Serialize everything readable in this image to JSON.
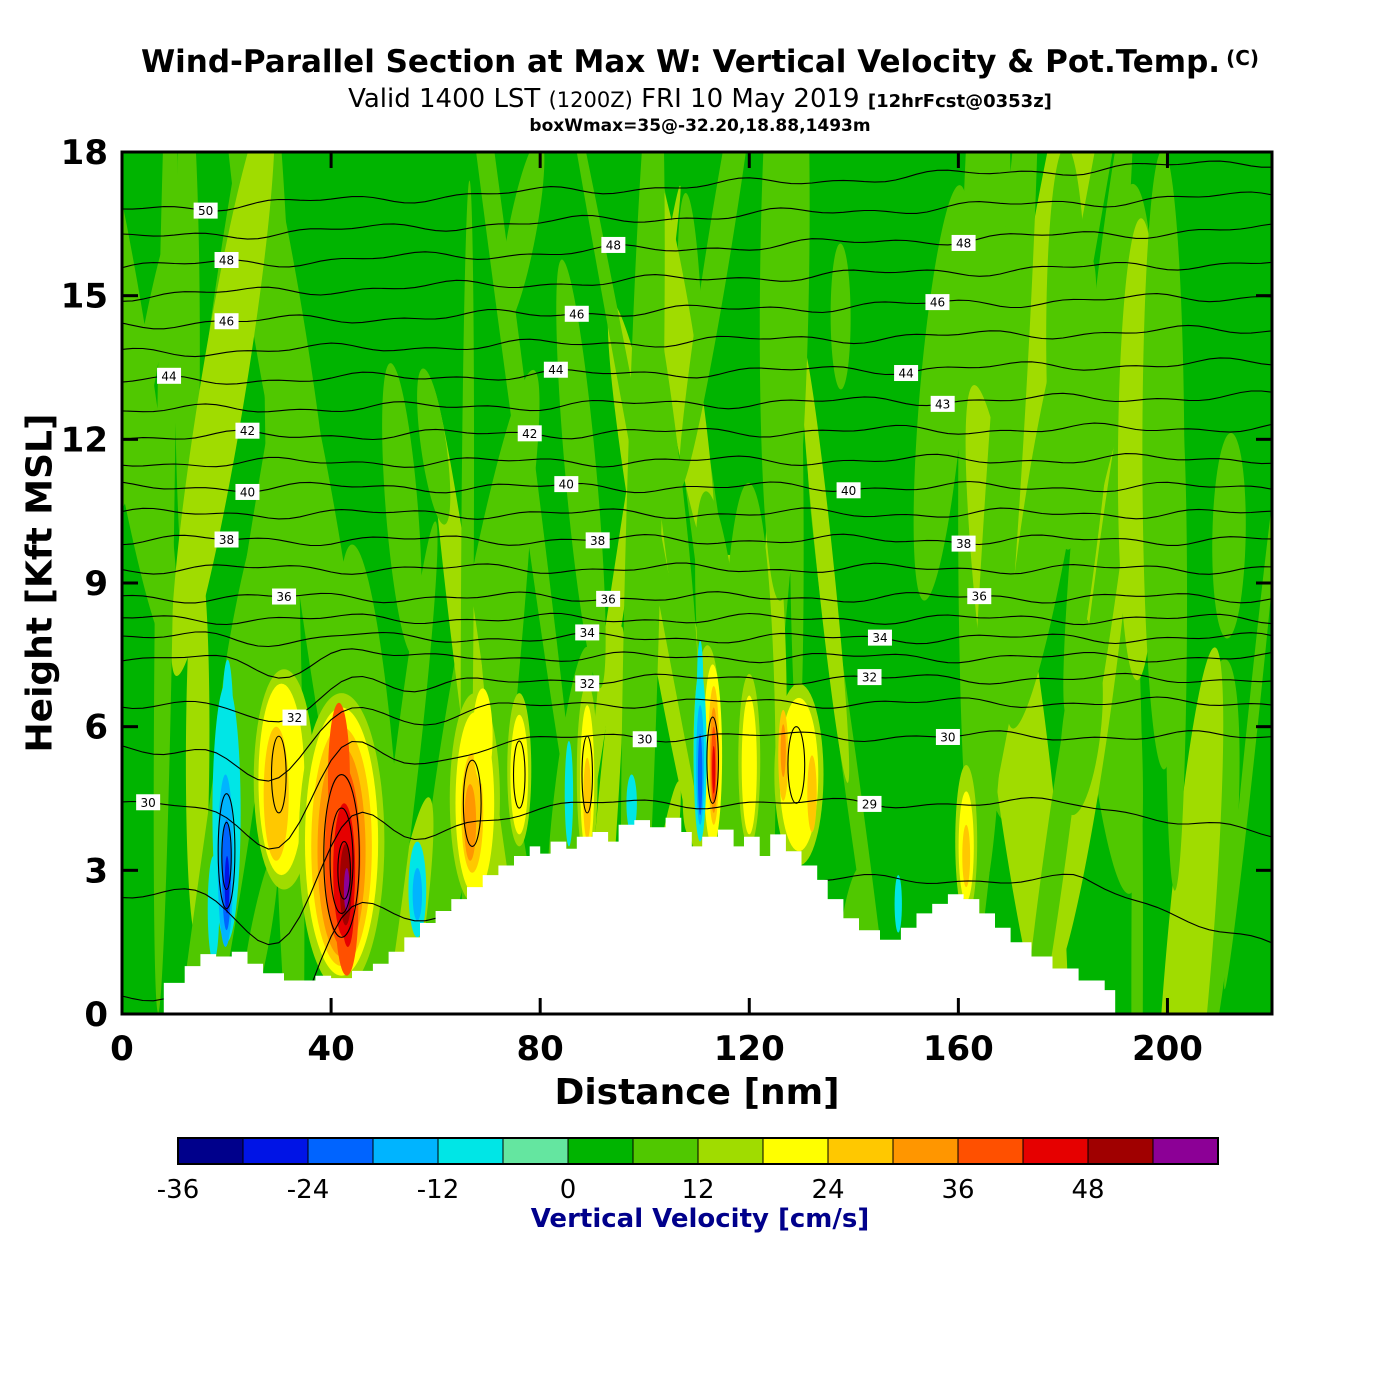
{
  "header": {
    "title": "Wind-Parallel Section at Max W: Vertical Velocity & Pot.Temp.",
    "title_unit": "(C)",
    "valid": "Valid 1400 LST",
    "valid_z": "(1200Z)",
    "valid_date": "FRI 10 May 2019",
    "fcst": "[12hrFcst@0353z]",
    "wmax": "boxWmax=35@-32.20,18.88,1493m"
  },
  "chart_data": {
    "type": "heatmap",
    "title": "Wind-Parallel Section at Max W: Vertical Velocity & Pot.Temp. (C)",
    "subtitle": "Valid 1400 LST (1200Z) FRI 10 May 2019 [12hrFcst@0353z]",
    "annotation": "boxWmax=35@-32.20,18.88,1493m",
    "xlabel": "Distance [nm]",
    "ylabel": "Height [Kft MSL]",
    "xlim": [
      0,
      220
    ],
    "ylim": [
      0,
      18
    ],
    "xticks": [
      0,
      40,
      80,
      120,
      160,
      200
    ],
    "yticks": [
      0,
      3,
      6,
      9,
      12,
      15,
      18
    ],
    "grid": false,
    "fill_field": "Vertical Velocity [cm/s]",
    "contour_field": "Potential Temperature [C]",
    "background_color": "#00b400",
    "colorbar": {
      "label": "Vertical Velocity [cm/s]",
      "label_color": "#00008b",
      "min": -36,
      "max": 60,
      "step": 6,
      "tick_values": [
        -36,
        -24,
        -12,
        0,
        12,
        24,
        36,
        48
      ],
      "colors": [
        "#00008b",
        "#0014e6",
        "#0064ff",
        "#00b4ff",
        "#00e6e6",
        "#64e6a0",
        "#00b400",
        "#50c800",
        "#a0dc00",
        "#ffff00",
        "#ffc800",
        "#ff9600",
        "#ff5000",
        "#e60000",
        "#a00000",
        "#8c0096"
      ]
    },
    "streaks": {
      "seed": 20,
      "count": 85,
      "colors": [
        "#50c800",
        "#a0dc00"
      ]
    },
    "features": [
      {
        "x": 31,
        "h": 4.9,
        "rx": 5.8,
        "ry": 2.3,
        "c": "#a0dc00"
      },
      {
        "x": 30.5,
        "h": 4.9,
        "rx": 4.4,
        "ry": 2.0,
        "c": "#ffff00"
      },
      {
        "x": 29.5,
        "h": 4.6,
        "rx": 2.4,
        "ry": 1.4,
        "c": "#ffc800"
      },
      {
        "x": 42,
        "h": 3.6,
        "rx": 8.2,
        "ry": 3.1,
        "c": "#a0dc00"
      },
      {
        "x": 42,
        "h": 3.6,
        "rx": 7.0,
        "ry": 2.8,
        "c": "#ffff00"
      },
      {
        "x": 42,
        "h": 3.5,
        "rx": 5.8,
        "ry": 2.5,
        "c": "#ffc800"
      },
      {
        "x": 42,
        "h": 3.4,
        "rx": 4.6,
        "ry": 2.2,
        "c": "#ff9600"
      },
      {
        "x": 42.2,
        "h": 3.3,
        "rx": 3.4,
        "ry": 1.9,
        "c": "#ff5000"
      },
      {
        "x": 43,
        "h": 2.2,
        "rx": 2.2,
        "ry": 1.4,
        "c": "#ff5000"
      },
      {
        "x": 41.5,
        "h": 4.9,
        "rx": 2.1,
        "ry": 1.6,
        "c": "#ff5000"
      },
      {
        "x": 42.5,
        "h": 3.0,
        "rx": 2.1,
        "ry": 1.4,
        "c": "#e60000"
      },
      {
        "x": 43.2,
        "h": 2.3,
        "rx": 1.2,
        "ry": 0.9,
        "c": "#e60000"
      },
      {
        "x": 42.8,
        "h": 2.7,
        "rx": 1.15,
        "ry": 0.85,
        "c": "#a00000"
      },
      {
        "x": 43,
        "h": 2.6,
        "rx": 0.55,
        "ry": 0.45,
        "c": "#8c0096"
      },
      {
        "x": 20,
        "h": 4.2,
        "rx": 2.7,
        "ry": 2.7,
        "c": "#00e6e6"
      },
      {
        "x": 20.2,
        "h": 6.0,
        "rx": 1.1,
        "ry": 1.4,
        "c": "#00e6e6"
      },
      {
        "x": 17.5,
        "h": 2.2,
        "rx": 1.1,
        "ry": 1.1,
        "c": "#00e6e6"
      },
      {
        "x": 19.8,
        "h": 3.2,
        "rx": 1.5,
        "ry": 1.8,
        "c": "#00b4ff"
      },
      {
        "x": 20,
        "h": 2.9,
        "rx": 0.85,
        "ry": 1.15,
        "c": "#0064ff"
      },
      {
        "x": 20.1,
        "h": 2.7,
        "rx": 0.45,
        "ry": 0.6,
        "c": "#0014e6"
      },
      {
        "x": 56.5,
        "h": 2.6,
        "rx": 1.7,
        "ry": 1.0,
        "c": "#00e6e6"
      },
      {
        "x": 56.5,
        "h": 2.5,
        "rx": 0.9,
        "ry": 0.55,
        "c": "#00b4ff"
      },
      {
        "x": 67.5,
        "h": 4.5,
        "rx": 4.8,
        "ry": 2.2,
        "c": "#a0dc00"
      },
      {
        "x": 67.5,
        "h": 4.4,
        "rx": 3.7,
        "ry": 1.9,
        "c": "#ffff00"
      },
      {
        "x": 67,
        "h": 4.2,
        "rx": 2.1,
        "ry": 1.25,
        "c": "#ffc800"
      },
      {
        "x": 66.6,
        "h": 4.0,
        "rx": 1.15,
        "ry": 0.8,
        "c": "#ff9600"
      },
      {
        "x": 69,
        "h": 5.8,
        "rx": 1.9,
        "ry": 1.0,
        "c": "#ffff00"
      },
      {
        "x": 76,
        "h": 5.1,
        "rx": 2.3,
        "ry": 1.6,
        "c": "#a0dc00"
      },
      {
        "x": 76,
        "h": 5.0,
        "rx": 1.7,
        "ry": 1.25,
        "c": "#ffff00"
      },
      {
        "x": 85.5,
        "h": 4.6,
        "rx": 0.8,
        "ry": 1.1,
        "c": "#00e6e6"
      },
      {
        "x": 89,
        "h": 5.0,
        "rx": 2.0,
        "ry": 1.9,
        "c": "#a0dc00"
      },
      {
        "x": 89,
        "h": 4.9,
        "rx": 1.35,
        "ry": 1.55,
        "c": "#ffff00"
      },
      {
        "x": 89,
        "h": 4.5,
        "rx": 0.75,
        "ry": 0.85,
        "c": "#ffc800"
      },
      {
        "x": 97.5,
        "h": 4.4,
        "rx": 1.0,
        "ry": 0.6,
        "c": "#00e6e6"
      },
      {
        "x": 112,
        "h": 5.5,
        "rx": 2.7,
        "ry": 2.2,
        "c": "#a0dc00"
      },
      {
        "x": 113,
        "h": 5.4,
        "rx": 1.8,
        "ry": 1.9,
        "c": "#ffff00"
      },
      {
        "x": 110.6,
        "h": 5.4,
        "rx": 1.25,
        "ry": 1.8,
        "c": "#00e6e6"
      },
      {
        "x": 110.6,
        "h": 6.9,
        "rx": 0.6,
        "ry": 0.9,
        "c": "#00e6e6"
      },
      {
        "x": 110.6,
        "h": 5.2,
        "rx": 0.75,
        "ry": 1.25,
        "c": "#00b4ff"
      },
      {
        "x": 110.6,
        "h": 5.0,
        "rx": 0.42,
        "ry": 0.85,
        "c": "#0064ff"
      },
      {
        "x": 113.2,
        "h": 5.4,
        "rx": 1.05,
        "ry": 1.45,
        "c": "#ffc800"
      },
      {
        "x": 113.2,
        "h": 5.3,
        "rx": 0.75,
        "ry": 1.1,
        "c": "#ff9600"
      },
      {
        "x": 113.2,
        "h": 5.2,
        "rx": 0.5,
        "ry": 0.8,
        "c": "#ff5000"
      },
      {
        "x": 113.2,
        "h": 5.1,
        "rx": 0.3,
        "ry": 0.5,
        "c": "#e60000"
      },
      {
        "x": 120,
        "h": 5.3,
        "rx": 2.1,
        "ry": 1.8,
        "c": "#a0dc00"
      },
      {
        "x": 120,
        "h": 5.2,
        "rx": 1.45,
        "ry": 1.45,
        "c": "#ffff00"
      },
      {
        "x": 129.5,
        "h": 5.0,
        "rx": 4.7,
        "ry": 1.9,
        "c": "#a0dc00"
      },
      {
        "x": 129.5,
        "h": 5.0,
        "rx": 3.7,
        "ry": 1.6,
        "c": "#ffff00"
      },
      {
        "x": 126.5,
        "h": 5.4,
        "rx": 0.95,
        "ry": 0.95,
        "c": "#ffc800"
      },
      {
        "x": 132,
        "h": 4.6,
        "rx": 0.9,
        "ry": 0.8,
        "c": "#ffc800"
      },
      {
        "x": 126.5,
        "h": 5.5,
        "rx": 0.5,
        "ry": 0.55,
        "c": "#ff9600"
      },
      {
        "x": 148.5,
        "h": 2.3,
        "rx": 0.7,
        "ry": 0.6,
        "c": "#00e6e6"
      },
      {
        "x": 161.5,
        "h": 3.6,
        "rx": 2.1,
        "ry": 1.6,
        "c": "#a0dc00"
      },
      {
        "x": 161.5,
        "h": 3.5,
        "rx": 1.45,
        "ry": 1.15,
        "c": "#ffff00"
      },
      {
        "x": 161.5,
        "h": 3.3,
        "rx": 0.75,
        "ry": 0.65,
        "c": "#ffc800"
      }
    ],
    "isentropes": {
      "unit": "C",
      "levels": [
        {
          "t": 28,
          "h": 2.8
        },
        {
          "t": 29,
          "h": 4.4
        },
        {
          "t": 30,
          "h": 5.8
        },
        {
          "t": 31,
          "h": 6.5
        },
        {
          "t": 32,
          "h": 7.0
        },
        {
          "t": 33,
          "h": 7.45
        },
        {
          "t": 34,
          "h": 7.85
        },
        {
          "t": 35,
          "h": 8.25
        },
        {
          "t": 36,
          "h": 8.7
        },
        {
          "t": 37,
          "h": 9.3
        },
        {
          "t": 38,
          "h": 9.9
        },
        {
          "t": 39,
          "h": 10.45
        },
        {
          "t": 40,
          "h": 11.0
        },
        {
          "t": 41,
          "h": 11.55
        },
        {
          "t": 42,
          "h": 12.15
        },
        {
          "t": 43,
          "h": 12.75
        },
        {
          "t": 44,
          "h": 13.4
        },
        {
          "t": 45,
          "h": 14.05
        },
        {
          "t": 46,
          "h": 14.7
        },
        {
          "t": 47,
          "h": 15.35
        },
        {
          "t": 48,
          "h": 16.0
        },
        {
          "t": 49,
          "h": 16.65
        },
        {
          "t": 50,
          "h": 17.3
        }
      ],
      "labels": [
        {
          "t": 50,
          "x": 16
        },
        {
          "t": 48,
          "x": 20
        },
        {
          "t": 48,
          "x": 94
        },
        {
          "t": 48,
          "x": 161
        },
        {
          "t": 46,
          "x": 20
        },
        {
          "t": 46,
          "x": 87
        },
        {
          "t": 46,
          "x": 156
        },
        {
          "t": 44,
          "x": 9
        },
        {
          "t": 44,
          "x": 83
        },
        {
          "t": 44,
          "x": 150
        },
        {
          "t": 43,
          "x": 157
        },
        {
          "t": 42,
          "x": 24
        },
        {
          "t": 42,
          "x": 78
        },
        {
          "t": 40,
          "x": 24
        },
        {
          "t": 40,
          "x": 85
        },
        {
          "t": 40,
          "x": 139
        },
        {
          "t": 38,
          "x": 20
        },
        {
          "t": 38,
          "x": 91
        },
        {
          "t": 38,
          "x": 161
        },
        {
          "t": 36,
          "x": 31
        },
        {
          "t": 36,
          "x": 93
        },
        {
          "t": 36,
          "x": 164
        },
        {
          "t": 34,
          "x": 89
        },
        {
          "t": 34,
          "x": 145
        },
        {
          "t": 32,
          "x": 33
        },
        {
          "t": 32,
          "x": 89
        },
        {
          "t": 32,
          "x": 143
        },
        {
          "t": 30,
          "x": 5
        },
        {
          "t": 30,
          "x": 100
        },
        {
          "t": 30,
          "x": 158
        },
        {
          "t": 29,
          "x": 143
        }
      ],
      "closed": [
        {
          "x": 42,
          "h": 3.3,
          "rx": 3.4,
          "ry": 1.7
        },
        {
          "x": 42,
          "h": 3.2,
          "rx": 2.2,
          "ry": 1.1
        },
        {
          "x": 42.5,
          "h": 3.0,
          "rx": 1.2,
          "ry": 0.6
        },
        {
          "x": 20,
          "h": 3.4,
          "rx": 1.6,
          "ry": 1.2
        },
        {
          "x": 20,
          "h": 3.3,
          "rx": 0.9,
          "ry": 0.7
        },
        {
          "x": 67,
          "h": 4.4,
          "rx": 1.7,
          "ry": 0.9
        },
        {
          "x": 89,
          "h": 5.0,
          "rx": 1.0,
          "ry": 0.8
        },
        {
          "x": 113,
          "h": 5.3,
          "rx": 1.1,
          "ry": 0.9
        },
        {
          "x": 30,
          "h": 5.0,
          "rx": 1.4,
          "ry": 0.8
        },
        {
          "x": 129,
          "h": 5.2,
          "rx": 1.6,
          "ry": 0.8
        },
        {
          "x": 76,
          "h": 5.0,
          "rx": 1.1,
          "ry": 0.7
        }
      ]
    },
    "terrain": [
      [
        8,
        0.65
      ],
      [
        12,
        1.0
      ],
      [
        15,
        1.25
      ],
      [
        18,
        1.2
      ],
      [
        21,
        1.3
      ],
      [
        24,
        1.05
      ],
      [
        27,
        0.85
      ],
      [
        31,
        0.7
      ],
      [
        37,
        0.8
      ],
      [
        40,
        0.75
      ],
      [
        44,
        0.9
      ],
      [
        48,
        1.05
      ],
      [
        51,
        1.3
      ],
      [
        54,
        1.6
      ],
      [
        57,
        1.9
      ],
      [
        60,
        2.15
      ],
      [
        63,
        2.4
      ],
      [
        66,
        2.65
      ],
      [
        69,
        2.9
      ],
      [
        72,
        3.1
      ],
      [
        75,
        3.3
      ],
      [
        78,
        3.5
      ],
      [
        80,
        3.35
      ],
      [
        82,
        3.6
      ],
      [
        85,
        3.45
      ],
      [
        87,
        3.7
      ],
      [
        90,
        3.8
      ],
      [
        93,
        3.6
      ],
      [
        95,
        3.95
      ],
      [
        98,
        4.05
      ],
      [
        101,
        3.9
      ],
      [
        104,
        4.1
      ],
      [
        107,
        3.8
      ],
      [
        109,
        3.5
      ],
      [
        111,
        3.7
      ],
      [
        114,
        3.85
      ],
      [
        117,
        3.5
      ],
      [
        119,
        3.7
      ],
      [
        122,
        3.3
      ],
      [
        124,
        3.75
      ],
      [
        127,
        3.4
      ],
      [
        130,
        3.1
      ],
      [
        133,
        2.8
      ],
      [
        135,
        2.4
      ],
      [
        138,
        2.0
      ],
      [
        141,
        1.75
      ],
      [
        145,
        1.55
      ],
      [
        149,
        1.8
      ],
      [
        152,
        2.1
      ],
      [
        155,
        2.3
      ],
      [
        158,
        2.5
      ],
      [
        161,
        2.4
      ],
      [
        164,
        2.1
      ],
      [
        167,
        1.8
      ],
      [
        170,
        1.5
      ],
      [
        174,
        1.2
      ],
      [
        178,
        0.95
      ],
      [
        183,
        0.7
      ],
      [
        188,
        0.5
      ],
      [
        190,
        0
      ]
    ]
  }
}
